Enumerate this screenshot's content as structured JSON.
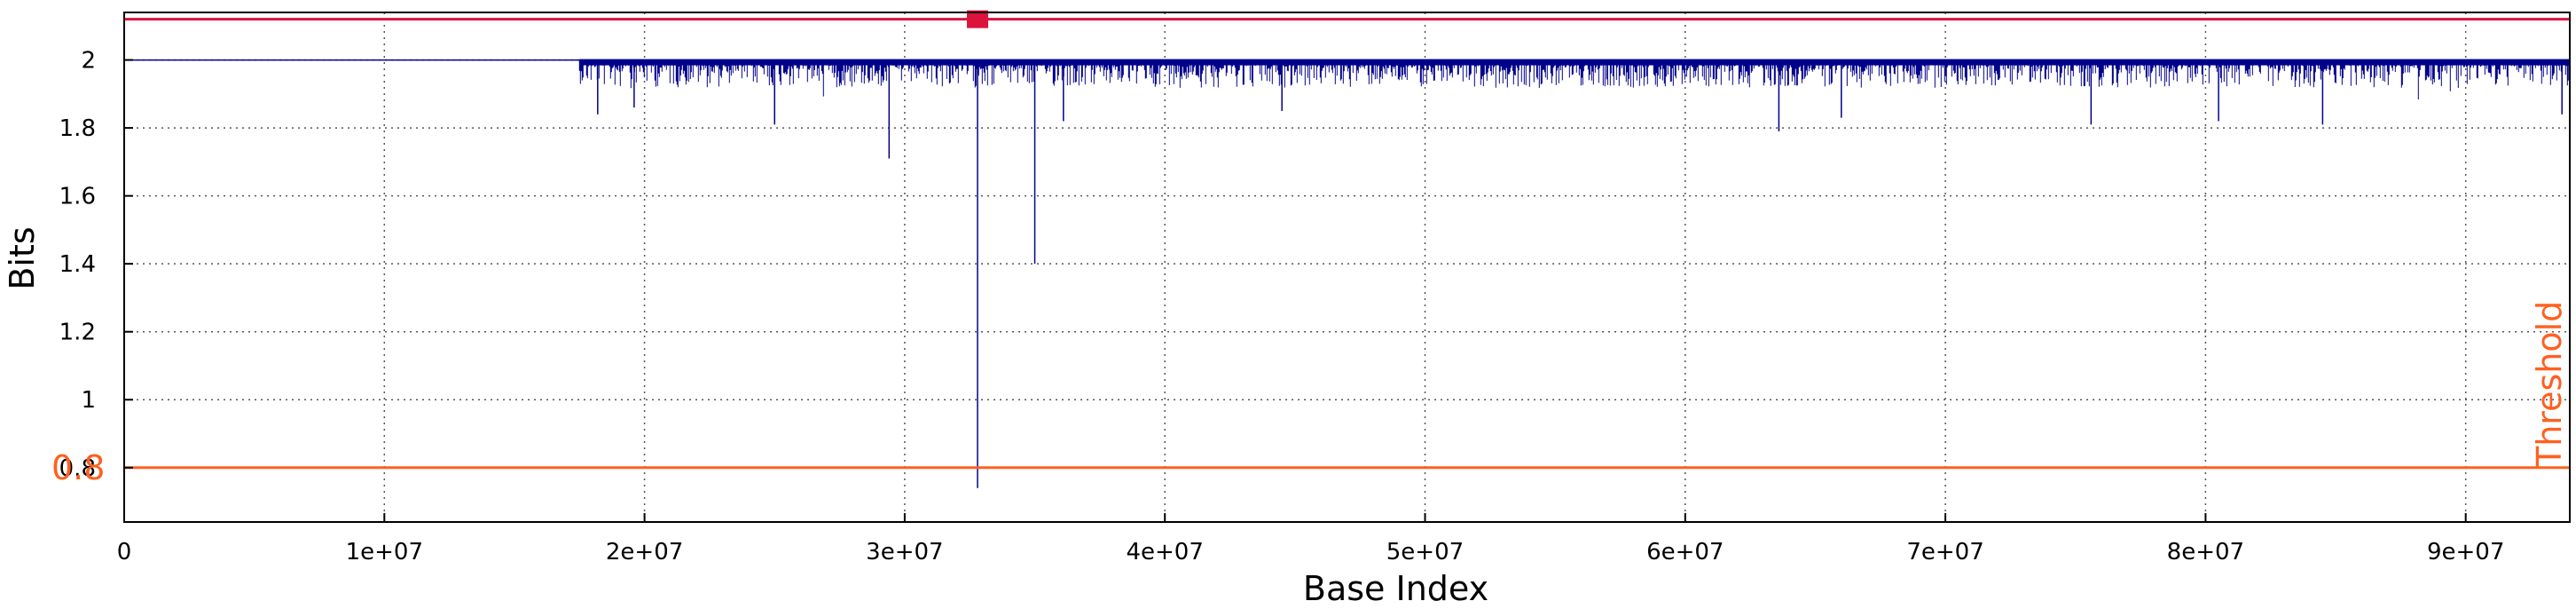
{
  "chart_data": {
    "type": "line",
    "title": "",
    "xlabel": "Base Index",
    "ylabel": "Bits",
    "xlim": [
      0,
      94000000
    ],
    "ylim": [
      0.64,
      2.14
    ],
    "x_ticks": [
      {
        "value": 0,
        "label": "0"
      },
      {
        "value": 10000000,
        "label": "1e+07"
      },
      {
        "value": 20000000,
        "label": "2e+07"
      },
      {
        "value": 30000000,
        "label": "3e+07"
      },
      {
        "value": 40000000,
        "label": "4e+07"
      },
      {
        "value": 50000000,
        "label": "5e+07"
      },
      {
        "value": 60000000,
        "label": "6e+07"
      },
      {
        "value": 70000000,
        "label": "7e+07"
      },
      {
        "value": 80000000,
        "label": "8e+07"
      },
      {
        "value": 90000000,
        "label": "9e+07"
      }
    ],
    "y_ticks": [
      {
        "value": 0.8,
        "label": "0.8"
      },
      {
        "value": 1.0,
        "label": "1"
      },
      {
        "value": 1.2,
        "label": "1.2"
      },
      {
        "value": 1.4,
        "label": "1.4"
      },
      {
        "value": 1.6,
        "label": "1.6"
      },
      {
        "value": 1.8,
        "label": "1.8"
      },
      {
        "value": 2.0,
        "label": "2"
      }
    ],
    "grid": true,
    "series": [
      {
        "color": "#00008b",
        "flat_segment": {
          "x": [
            0,
            17500000
          ],
          "y": 2.0
        },
        "dense_region": {
          "x": [
            17500000,
            94000000
          ],
          "upper": 2.0,
          "typical_lower": 1.93
        },
        "notable_dips": [
          {
            "x": 18200000,
            "y": 1.84
          },
          {
            "x": 19600000,
            "y": 1.86
          },
          {
            "x": 25000000,
            "y": 1.81
          },
          {
            "x": 29400000,
            "y": 1.71
          },
          {
            "x": 32800000,
            "y": 0.74
          },
          {
            "x": 35000000,
            "y": 1.4
          },
          {
            "x": 36100000,
            "y": 1.82
          },
          {
            "x": 44500000,
            "y": 1.85
          },
          {
            "x": 63600000,
            "y": 1.79
          },
          {
            "x": 66000000,
            "y": 1.83
          },
          {
            "x": 75600000,
            "y": 1.81
          },
          {
            "x": 80500000,
            "y": 1.82
          },
          {
            "x": 84500000,
            "y": 1.81
          },
          {
            "x": 93700000,
            "y": 1.84
          }
        ]
      }
    ],
    "reference_lines": [
      {
        "label": "Threshold",
        "y": 0.8,
        "value_label": "0.8",
        "color": "#ff6020"
      },
      {
        "y": 2.12,
        "color": "#dc143c"
      }
    ],
    "markers": [
      {
        "x": 32800000,
        "y": 2.12,
        "shape": "square",
        "color": "#dc143c"
      }
    ]
  }
}
